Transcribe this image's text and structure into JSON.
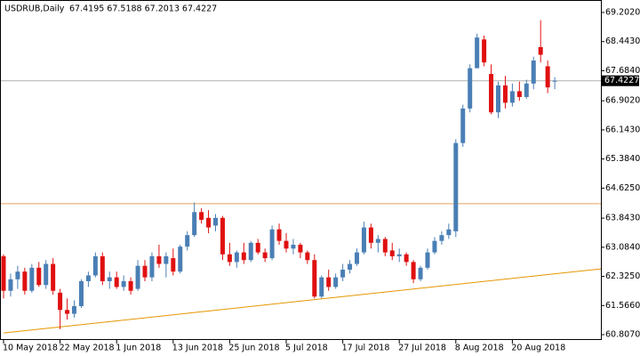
{
  "chart_data": {
    "type": "candlestick",
    "title": "USDRUB,Daily",
    "ohlc_text": "67.4195 67.5188 67.2013 67.4227",
    "up_color": "#4a7fb5",
    "down_color": "#e01010",
    "categories": [
      "10 May 2018",
      null,
      null,
      null,
      null,
      null,
      null,
      null,
      "22 May 2018",
      null,
      null,
      null,
      null,
      null,
      null,
      null,
      "1 Jun 2018",
      null,
      null,
      null,
      null,
      null,
      null,
      null,
      "13 Jun 2018",
      null,
      null,
      null,
      null,
      null,
      null,
      null,
      "25 Jun 2018",
      null,
      null,
      null,
      null,
      null,
      null,
      null,
      "5 Jul 2018",
      null,
      null,
      null,
      null,
      null,
      null,
      null,
      "17 Jul 2018",
      null,
      null,
      null,
      null,
      null,
      null,
      null,
      "27 Jul 2018",
      null,
      null,
      null,
      null,
      null,
      null,
      null,
      "8 Aug 2018",
      null,
      null,
      null,
      null,
      null,
      null,
      null,
      "20 Aug 2018",
      null,
      null,
      null,
      null,
      null,
      null
    ],
    "open": [
      62.85,
      61.95,
      62.25,
      62.45,
      61.95,
      62.55,
      62.1,
      62.65,
      61.9,
      61.45,
      61.35,
      61.55,
      62.2,
      62.35,
      62.85,
      62.2,
      62.3,
      62.05,
      62.2,
      62.0,
      62.6,
      62.3,
      62.85,
      62.65,
      62.8,
      62.45,
      63.1,
      63.4,
      64.0,
      63.85,
      63.65,
      63.85,
      62.9,
      62.7,
      62.95,
      62.75,
      63.2,
      62.95,
      62.8,
      63.55,
      63.25,
      63.05,
      63.15,
      62.95,
      62.75,
      61.8,
      62.3,
      62.05,
      62.3,
      62.5,
      62.65,
      62.95,
      63.6,
      63.2,
      63.3,
      63.0,
      62.85,
      62.9,
      62.7,
      62.25,
      62.55,
      62.95,
      63.25,
      63.4,
      63.5,
      65.8,
      66.7,
      67.75,
      68.5,
      67.6,
      66.6,
      67.3,
      66.85,
      67.15,
      67.0,
      67.35,
      68.3,
      67.8,
      67.4195
    ],
    "high": [
      62.9,
      62.4,
      62.6,
      62.55,
      62.65,
      62.7,
      62.75,
      62.8,
      62.0,
      61.75,
      61.7,
      62.25,
      62.45,
      62.95,
      62.95,
      62.45,
      62.45,
      62.35,
      62.3,
      62.75,
      62.75,
      62.95,
      63.15,
      62.95,
      63.05,
      63.15,
      63.5,
      64.25,
      64.1,
      64.05,
      63.95,
      63.9,
      63.2,
      63.0,
      63.2,
      63.25,
      63.3,
      63.05,
      63.65,
      63.7,
      63.45,
      63.3,
      63.2,
      63.0,
      62.9,
      62.35,
      62.5,
      62.4,
      62.65,
      62.75,
      63.05,
      63.75,
      63.7,
      63.4,
      63.35,
      63.2,
      63.05,
      62.95,
      62.75,
      62.6,
      63.05,
      63.35,
      63.5,
      63.7,
      65.9,
      66.8,
      67.85,
      68.65,
      68.6,
      67.85,
      67.4,
      67.55,
      67.35,
      67.4,
      67.45,
      68.05,
      69.0,
      67.95,
      67.5188
    ],
    "low": [
      61.75,
      61.8,
      62.0,
      61.85,
      61.9,
      62.05,
      62.0,
      61.85,
      60.95,
      61.2,
      61.25,
      61.5,
      62.05,
      62.3,
      62.1,
      62.0,
      62.0,
      61.95,
      61.85,
      61.95,
      62.2,
      62.2,
      62.55,
      62.3,
      62.35,
      62.4,
      63.0,
      63.35,
      63.7,
      63.45,
      63.5,
      62.75,
      62.6,
      62.55,
      62.65,
      62.7,
      62.9,
      62.7,
      62.75,
      63.15,
      62.95,
      62.9,
      62.8,
      62.65,
      61.75,
      61.75,
      61.95,
      62.0,
      62.2,
      62.4,
      62.6,
      62.9,
      63.05,
      62.95,
      62.85,
      62.75,
      62.7,
      62.6,
      62.15,
      62.2,
      62.5,
      62.9,
      63.15,
      63.3,
      63.35,
      65.7,
      66.6,
      67.75,
      67.8,
      66.55,
      66.45,
      66.7,
      66.75,
      66.9,
      66.95,
      67.2,
      67.9,
      67.1,
      67.2013
    ],
    "close": [
      61.95,
      62.25,
      62.45,
      61.95,
      62.55,
      62.1,
      62.65,
      61.95,
      61.45,
      61.35,
      61.55,
      62.2,
      62.35,
      62.85,
      62.2,
      62.3,
      62.05,
      62.2,
      61.95,
      62.6,
      62.3,
      62.85,
      62.65,
      62.85,
      62.45,
      63.1,
      63.4,
      64.0,
      63.8,
      63.6,
      63.85,
      62.9,
      62.7,
      62.95,
      62.75,
      63.2,
      62.95,
      62.8,
      63.55,
      63.25,
      63.05,
      63.15,
      62.95,
      62.75,
      61.8,
      62.3,
      62.05,
      62.3,
      62.5,
      62.65,
      62.95,
      63.6,
      63.2,
      63.3,
      62.95,
      62.85,
      62.9,
      62.7,
      62.25,
      62.55,
      62.95,
      63.25,
      63.4,
      63.55,
      65.8,
      66.7,
      67.75,
      68.55,
      67.9,
      66.6,
      67.3,
      66.85,
      67.15,
      67.0,
      67.35,
      67.95,
      68.1,
      67.25,
      67.4227
    ],
    "ylim": [
      60.668,
      69.527
    ],
    "yticks": [
      {
        "value": 69.202,
        "label": "69.2020"
      },
      {
        "value": 68.443,
        "label": "68.4430"
      },
      {
        "value": 67.684,
        "label": "67.6840"
      },
      {
        "value": 66.902,
        "label": "66.9020"
      },
      {
        "value": 66.143,
        "label": "66.1430"
      },
      {
        "value": 65.384,
        "label": "65.3840"
      },
      {
        "value": 64.625,
        "label": "64.6250"
      },
      {
        "value": 63.843,
        "label": "63.8430"
      },
      {
        "value": 63.084,
        "label": "63.0840"
      },
      {
        "value": 62.325,
        "label": "62.3250"
      },
      {
        "value": 61.566,
        "label": "61.5660"
      },
      {
        "value": 60.807,
        "label": "60.8070"
      }
    ],
    "last_price": 67.4227,
    "hline": {
      "value": 64.22,
      "color": "#e8a060"
    },
    "trendline": {
      "x": [
        0,
        85
      ],
      "y": [
        60.85,
        62.52
      ],
      "color": "#e69500"
    }
  }
}
